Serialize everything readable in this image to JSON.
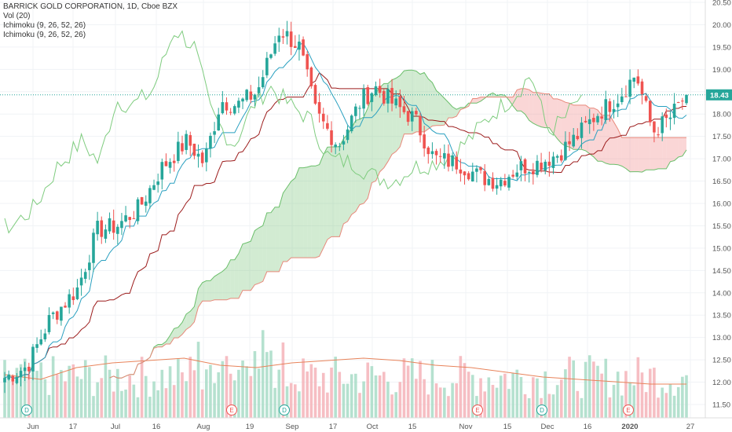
{
  "chart_data": {
    "type": "candlestick",
    "symbol": "BARRICK GOLD CORPORATION, 1D, Cboe BZX",
    "indicators": [
      "Vol (20)",
      "Ichimoku (9, 26, 52, 26)",
      "Ichimoku (9, 26, 52, 26)"
    ],
    "last_price": "18.43",
    "y_ticks": [
      "20.50",
      "20.00",
      "19.50",
      "19.00",
      "18.50",
      "18.00",
      "17.50",
      "17.00",
      "16.50",
      "16.00",
      "15.50",
      "15.00",
      "14.50",
      "14.00",
      "13.50",
      "13.00",
      "12.50",
      "12.00",
      "11.50"
    ],
    "x_ticks": [
      {
        "label": "Jun",
        "bold": false
      },
      {
        "label": "17",
        "bold": false
      },
      {
        "label": "Jul",
        "bold": false
      },
      {
        "label": "16",
        "bold": false
      },
      {
        "label": "Aug",
        "bold": false
      },
      {
        "label": "19",
        "bold": false
      },
      {
        "label": "Sep",
        "bold": false
      },
      {
        "label": "17",
        "bold": false
      },
      {
        "label": "Oct",
        "bold": false
      },
      {
        "label": "15",
        "bold": false
      },
      {
        "label": "Nov",
        "bold": false
      },
      {
        "label": "15",
        "bold": false
      },
      {
        "label": "Dec",
        "bold": false
      },
      {
        "label": "16",
        "bold": false
      },
      {
        "label": "2020",
        "bold": true
      },
      {
        "label": "27",
        "bold": false
      }
    ],
    "events": [
      {
        "label": "D",
        "kind": "dividend"
      },
      {
        "label": "E",
        "kind": "earnings"
      },
      {
        "label": "D",
        "kind": "dividend"
      },
      {
        "label": "E",
        "kind": "earnings"
      },
      {
        "label": "D",
        "kind": "dividend"
      },
      {
        "label": "E",
        "kind": "earnings"
      }
    ],
    "y_range": [
      11.25,
      20.6
    ],
    "path_points": [
      {
        "d": "2019-05-22",
        "c": 12.1
      },
      {
        "d": "2019-05-30",
        "c": 12.35
      },
      {
        "d": "2019-06-07",
        "c": 13.4
      },
      {
        "d": "2019-06-17",
        "c": 14.1
      },
      {
        "d": "2019-06-24",
        "c": 15.4
      },
      {
        "d": "2019-07-01",
        "c": 15.5
      },
      {
        "d": "2019-07-09",
        "c": 15.9
      },
      {
        "d": "2019-07-17",
        "c": 16.8
      },
      {
        "d": "2019-07-26",
        "c": 17.4
      },
      {
        "d": "2019-08-01",
        "c": 16.9
      },
      {
        "d": "2019-08-07",
        "c": 18.3
      },
      {
        "d": "2019-08-13",
        "c": 18.2
      },
      {
        "d": "2019-08-20",
        "c": 18.5
      },
      {
        "d": "2019-08-28",
        "c": 19.9
      },
      {
        "d": "2019-09-04",
        "c": 19.5
      },
      {
        "d": "2019-09-10",
        "c": 18.0
      },
      {
        "d": "2019-09-18",
        "c": 17.3
      },
      {
        "d": "2019-09-26",
        "c": 18.3
      },
      {
        "d": "2019-10-01",
        "c": 18.6
      },
      {
        "d": "2019-10-08",
        "c": 18.2
      },
      {
        "d": "2019-10-15",
        "c": 17.9
      },
      {
        "d": "2019-10-22",
        "c": 17.0
      },
      {
        "d": "2019-10-31",
        "c": 16.9
      },
      {
        "d": "2019-11-07",
        "c": 16.6
      },
      {
        "d": "2019-11-14",
        "c": 16.5
      },
      {
        "d": "2019-11-21",
        "c": 16.8
      },
      {
        "d": "2019-11-28",
        "c": 16.9
      },
      {
        "d": "2019-12-05",
        "c": 17.1
      },
      {
        "d": "2019-12-12",
        "c": 17.5
      },
      {
        "d": "2019-12-19",
        "c": 18.0
      },
      {
        "d": "2019-12-27",
        "c": 18.4
      },
      {
        "d": "2020-01-02",
        "c": 18.9
      },
      {
        "d": "2020-01-08",
        "c": 17.6
      },
      {
        "d": "2020-01-14",
        "c": 17.9
      },
      {
        "d": "2020-01-20",
        "c": 18.43
      }
    ],
    "avg_volume_series": [
      12.15,
      12.05,
      12.3,
      12.4,
      12.45,
      12.5,
      12.35,
      12.3,
      12.4,
      12.45,
      12.5,
      12.45,
      12.35,
      12.3,
      12.2,
      12.1,
      12.05,
      12.0,
      11.95,
      11.95
    ]
  }
}
